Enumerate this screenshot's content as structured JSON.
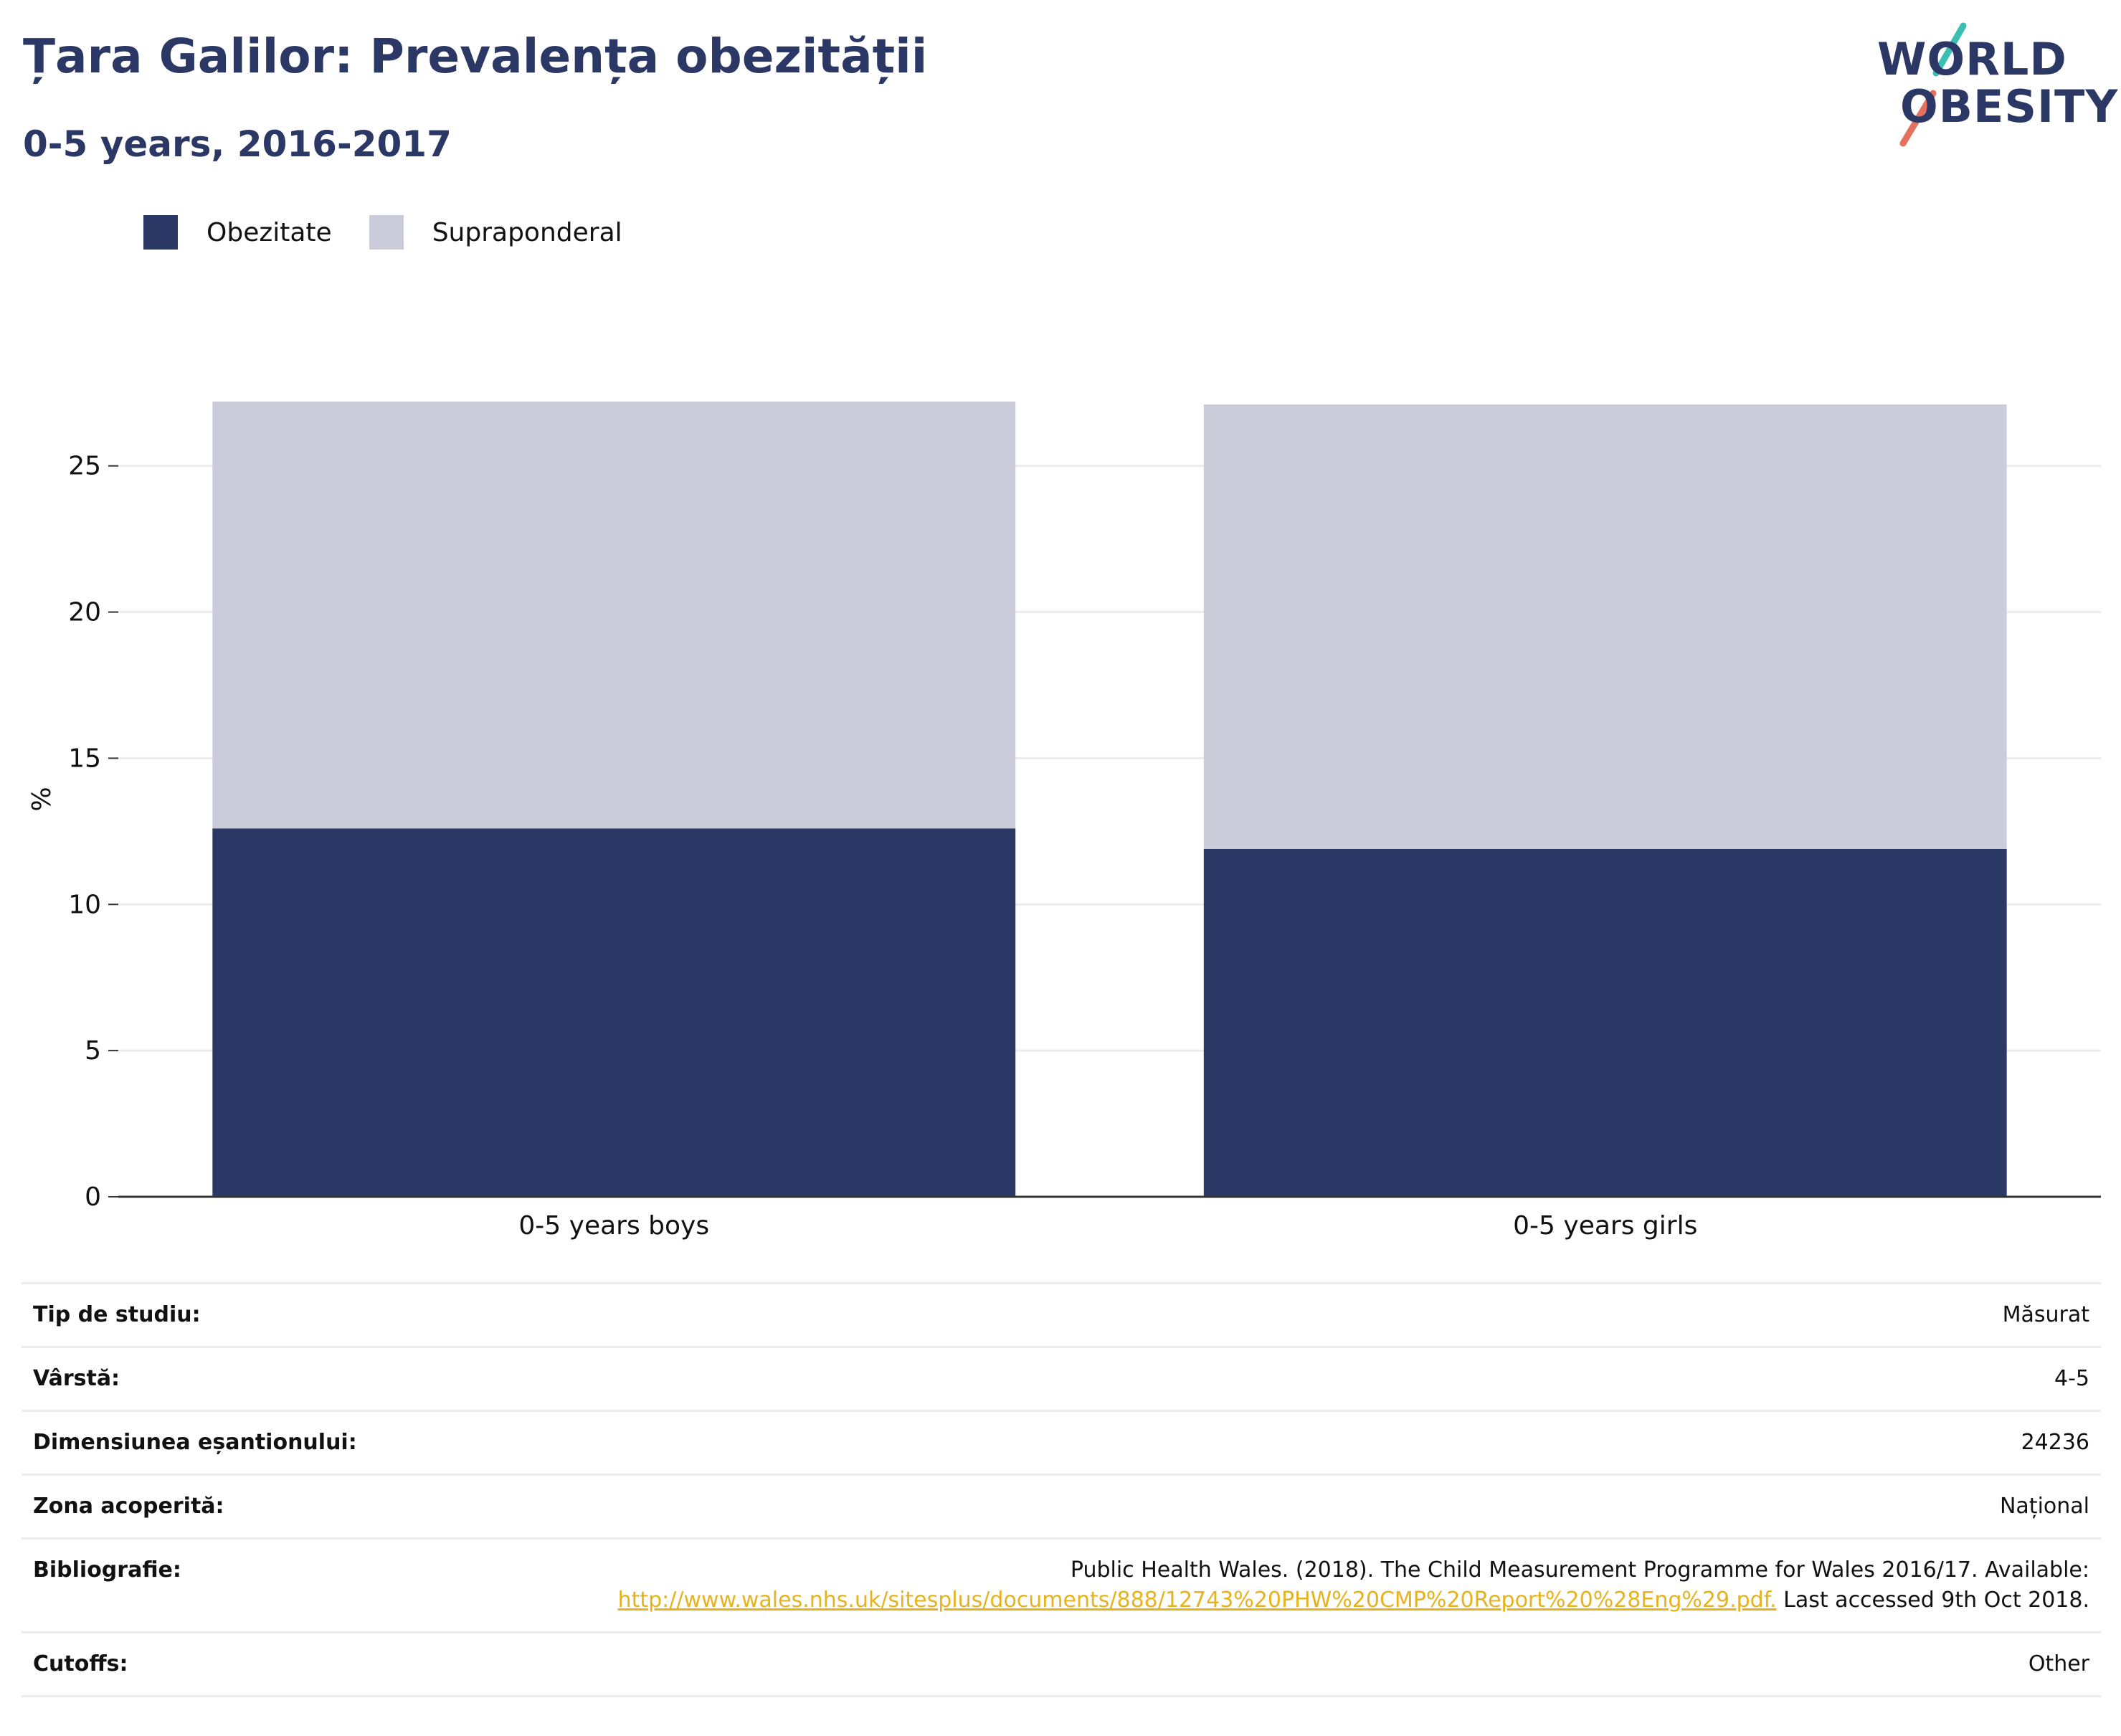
{
  "header": {
    "title": "Țara Galilor: Prevalența obezității",
    "subtitle": "0-5 years, 2016-2017"
  },
  "logo": {
    "line1": "WORLD",
    "line2": "OBESITY",
    "colors": {
      "text": "#2b3765",
      "slash_teal": "#3bbfb3",
      "slash_coral": "#e4705e"
    }
  },
  "chart_data": {
    "type": "bar",
    "stacked": true,
    "categories": [
      "0-5 years boys",
      "0-5 years girls"
    ],
    "series": [
      {
        "name": "Obezitate",
        "color": "#2b3765",
        "values": [
          12.6,
          11.9
        ]
      },
      {
        "name": "Supraponderal",
        "color": "#cacdd9",
        "values": [
          14.6,
          15.2
        ]
      }
    ],
    "ylabel": "%",
    "xlabel": "",
    "ylim": [
      0,
      27.2
    ],
    "yticks": [
      0,
      5,
      10,
      15,
      20,
      25
    ],
    "grid": true,
    "legend_position": "top-left"
  },
  "info": {
    "rows": [
      {
        "key": "Tip de studiu:",
        "value": "Măsurat"
      },
      {
        "key": "Vârstă:",
        "value": "4-5"
      },
      {
        "key": "Dimensiunea eșantionului:",
        "value": "24236"
      },
      {
        "key": "Zona acoperită:",
        "value": "Național"
      }
    ],
    "bibliography": {
      "key": "Bibliografie:",
      "text_before": "Public Health Wales. (2018). The Child Measurement Programme for Wales 2016/17. Available:",
      "link": "http://www.wales.nhs.uk/sitesplus/documents/888/12743%20PHW%20CMP%20Report%20%28Eng%29.pdf.",
      "text_after": "Last accessed 9th Oct 2018."
    },
    "cutoffs": {
      "key": "Cutoffs:",
      "value": "Other"
    }
  }
}
